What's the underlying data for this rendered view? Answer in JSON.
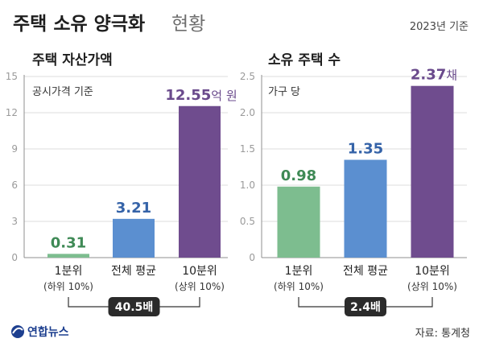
{
  "header": {
    "title": "주택 소유 양극화",
    "subtitle": "현황",
    "basis": "2023년 기준"
  },
  "source": "자료: 통계청",
  "logo": {
    "text": "연합뉴스",
    "icon": "yonhap-logo-icon"
  },
  "colors": {
    "bottom": "#7dbd8f",
    "average": "#5b8fd0",
    "top": "#6f4c8e",
    "bottom_label": "#3f8a56",
    "average_label": "#3563a8",
    "top_label": "#6a4a8c",
    "ratio_badge": "#2b2b2b"
  },
  "chart_data": [
    {
      "type": "bar",
      "title": "주택 자산가액",
      "unit_note": "공시가격 기준",
      "categories": [
        "1분위|(하위 10%)",
        "전체 평균",
        "10분위|(상위 10%)"
      ],
      "values": [
        0.31,
        3.21,
        12.55
      ],
      "value_labels": [
        "0.31",
        "3.21",
        "12.55"
      ],
      "last_value_unit": "억 원",
      "ylim": [
        0,
        15
      ],
      "yticks": [
        "0",
        "3",
        "6",
        "9",
        "12",
        "15"
      ],
      "grid": true,
      "ratio_label": "40.5배"
    },
    {
      "type": "bar",
      "title": "소유 주택 수",
      "unit_note": "가구 당",
      "categories": [
        "1분위|(하위 10%)",
        "전체 평균",
        "10분위|(상위 10%)"
      ],
      "values": [
        0.98,
        1.35,
        2.37
      ],
      "value_labels": [
        "0.98",
        "1.35",
        "2.37"
      ],
      "last_value_unit": "채",
      "ylim": [
        0,
        2.5
      ],
      "yticks": [
        "0",
        "0.5",
        "1.0",
        "1.5",
        "2.0",
        "2.5"
      ],
      "grid": true,
      "ratio_label": "2.4배"
    }
  ]
}
